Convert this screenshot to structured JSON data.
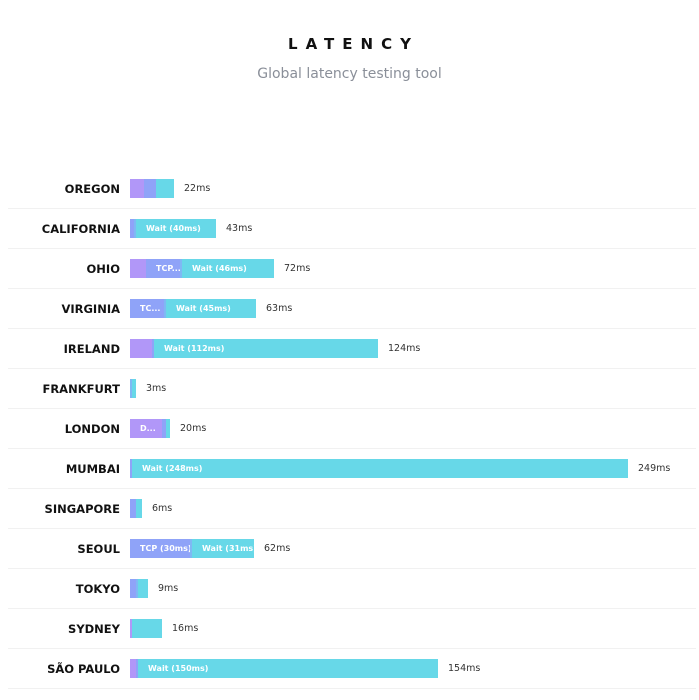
{
  "header": {
    "title": "LATENCY",
    "subtitle": "Global latency testing tool"
  },
  "colors": {
    "dns": "#b197f8",
    "tcp": "#8fa3f8",
    "tls": "#7fb8f4",
    "wait": "#67d8e8"
  },
  "chart_data": {
    "type": "bar",
    "orientation": "horizontal",
    "stacked": true,
    "unit": "ms",
    "categories": [
      "OREGON",
      "CALIFORNIA",
      "OHIO",
      "VIRGINIA",
      "IRELAND",
      "FRANKFURT",
      "LONDON",
      "MUMBAI",
      "SINGAPORE",
      "SEOUL",
      "TOKYO",
      "SYDNEY",
      "SÃO PAULO"
    ],
    "totals": [
      22,
      43,
      72,
      63,
      124,
      3,
      20,
      249,
      6,
      62,
      9,
      16,
      154
    ],
    "total_labels": [
      "22ms",
      "43ms",
      "72ms",
      "63ms",
      "124ms",
      "3ms",
      "20ms",
      "249ms",
      "6ms",
      "62ms",
      "9ms",
      "16ms",
      "154ms"
    ],
    "rows": [
      {
        "segments": [
          {
            "kind": "dns",
            "value": 7,
            "label": ""
          },
          {
            "kind": "tcp",
            "value": 6,
            "label": ""
          },
          {
            "kind": "wait",
            "value": 9,
            "label": ""
          }
        ]
      },
      {
        "segments": [
          {
            "kind": "tcp",
            "value": 2,
            "label": ""
          },
          {
            "kind": "tls",
            "value": 1,
            "label": ""
          },
          {
            "kind": "wait",
            "value": 40,
            "label": "Wait (40ms)"
          }
        ]
      },
      {
        "segments": [
          {
            "kind": "dns",
            "value": 8,
            "label": ""
          },
          {
            "kind": "tcp",
            "value": 17,
            "label": "TCP..."
          },
          {
            "kind": "tls",
            "value": 1,
            "label": ""
          },
          {
            "kind": "wait",
            "value": 46,
            "label": "Wait (46ms)"
          }
        ]
      },
      {
        "segments": [
          {
            "kind": "tcp",
            "value": 17,
            "label": "TC..."
          },
          {
            "kind": "tls",
            "value": 1,
            "label": ""
          },
          {
            "kind": "wait",
            "value": 45,
            "label": "Wait (45ms)"
          }
        ]
      },
      {
        "segments": [
          {
            "kind": "dns",
            "value": 11,
            "label": ""
          },
          {
            "kind": "tcp",
            "value": 1,
            "label": ""
          },
          {
            "kind": "wait",
            "value": 112,
            "label": "Wait (112ms)"
          }
        ]
      },
      {
        "segments": [
          {
            "kind": "tls",
            "value": 1,
            "label": ""
          },
          {
            "kind": "wait",
            "value": 2,
            "label": ""
          }
        ]
      },
      {
        "segments": [
          {
            "kind": "dns",
            "value": 16,
            "label": "D..."
          },
          {
            "kind": "tcp",
            "value": 2,
            "label": ""
          },
          {
            "kind": "wait",
            "value": 2,
            "label": ""
          }
        ]
      },
      {
        "segments": [
          {
            "kind": "tcp",
            "value": 1,
            "label": ""
          },
          {
            "kind": "wait",
            "value": 248,
            "label": "Wait (248ms)"
          }
        ]
      },
      {
        "segments": [
          {
            "kind": "tcp",
            "value": 3,
            "label": ""
          },
          {
            "kind": "wait",
            "value": 3,
            "label": ""
          }
        ]
      },
      {
        "segments": [
          {
            "kind": "tcp",
            "value": 30,
            "label": "TCP (30ms)"
          },
          {
            "kind": "tls",
            "value": 1,
            "label": ""
          },
          {
            "kind": "wait",
            "value": 31,
            "label": "Wait (31ms)"
          }
        ]
      },
      {
        "segments": [
          {
            "kind": "tcp",
            "value": 3,
            "label": ""
          },
          {
            "kind": "tls",
            "value": 1,
            "label": ""
          },
          {
            "kind": "wait",
            "value": 5,
            "label": ""
          }
        ]
      },
      {
        "segments": [
          {
            "kind": "dns",
            "value": 1,
            "label": ""
          },
          {
            "kind": "wait",
            "value": 15,
            "label": ""
          }
        ]
      },
      {
        "segments": [
          {
            "kind": "dns",
            "value": 3,
            "label": ""
          },
          {
            "kind": "tcp",
            "value": 1,
            "label": ""
          },
          {
            "kind": "wait",
            "value": 150,
            "label": "Wait (150ms)"
          }
        ]
      }
    ]
  }
}
